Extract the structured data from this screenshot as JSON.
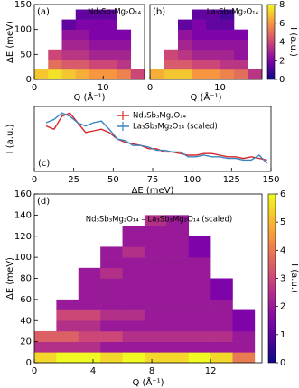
{
  "chart_data": [
    {
      "type": "heatmap",
      "panel_label": "(a)",
      "title": "Nd₃Sb₃Mg₂O₁₄",
      "xlabel": "Q (Å⁻¹)",
      "ylabel": "ΔE (meV)",
      "xlim": [
        0,
        16
      ],
      "xticks": [
        0,
        10
      ],
      "ylim": [
        0,
        150
      ],
      "yticks": [
        0,
        50,
        100,
        150
      ],
      "zlim": [
        0,
        8
      ],
      "x_edges": [
        0,
        2,
        4,
        6,
        8,
        10,
        12,
        14,
        16
      ],
      "y_edges": [
        0,
        20,
        40,
        60,
        80,
        100,
        120,
        140
      ],
      "z": [
        [
          7,
          7.5,
          7,
          6.5,
          6,
          6,
          5.5,
          4
        ],
        [
          null,
          5,
          4.5,
          4.5,
          4,
          4,
          3.5,
          null
        ],
        [
          null,
          4,
          3.5,
          3.5,
          3,
          3,
          3,
          null
        ],
        [
          null,
          null,
          3,
          3,
          2.5,
          2.5,
          2.5,
          null
        ],
        [
          null,
          null,
          2.5,
          2.5,
          2,
          2,
          2,
          null
        ],
        [
          null,
          null,
          1.5,
          2,
          2,
          2,
          null,
          null
        ],
        [
          null,
          null,
          null,
          1.5,
          1.5,
          1.5,
          null,
          null
        ]
      ]
    },
    {
      "type": "heatmap",
      "panel_label": "(b)",
      "title": "La₃Sb₃Mg₂O₁₄",
      "xlabel": "Q (Å⁻¹)",
      "xlim": [
        0,
        16
      ],
      "xticks": [
        0,
        10
      ],
      "ylim": [
        0,
        150
      ],
      "zlim": [
        0,
        8
      ],
      "zticks": [
        0,
        2,
        4,
        6,
        8
      ],
      "colorbar_label": "I (a.u.)",
      "x_edges": [
        0,
        2,
        4,
        6,
        8,
        10,
        12,
        14,
        16
      ],
      "y_edges": [
        0,
        20,
        40,
        60,
        80,
        100,
        120,
        140
      ],
      "z": [
        [
          6.5,
          7,
          7,
          6,
          6,
          5.5,
          5,
          3.5
        ],
        [
          null,
          4.5,
          4.5,
          4,
          4,
          3.5,
          3.5,
          null
        ],
        [
          null,
          4,
          3.5,
          3,
          3,
          3,
          2.5,
          null
        ],
        [
          null,
          null,
          3,
          2.5,
          2.5,
          2.5,
          2.5,
          null
        ],
        [
          null,
          null,
          2.5,
          2,
          2,
          2,
          2,
          null
        ],
        [
          null,
          null,
          1.5,
          2,
          1.5,
          1.5,
          null,
          null
        ],
        [
          null,
          null,
          null,
          1.5,
          1.5,
          1,
          null,
          null
        ]
      ]
    },
    {
      "type": "line",
      "panel_label": "(c)",
      "xlabel": "ΔE (meV)",
      "ylabel": "I (a.u.)",
      "xlim": [
        0,
        150
      ],
      "xticks": [
        0,
        25,
        50,
        75,
        100,
        125,
        150
      ],
      "ylim": [
        0,
        20
      ],
      "legend_loc": "upper center",
      "x": [
        7.5,
        12.5,
        17.5,
        22.5,
        27.5,
        32.5,
        37.5,
        42.5,
        47.5,
        52.5,
        57.5,
        62.5,
        67.5,
        72.5,
        77.5,
        82.5,
        87.5,
        92.5,
        97.5,
        102.5,
        107.5,
        112.5,
        117.5,
        122.5,
        127.5,
        132.5,
        137.5,
        142.5,
        147.5
      ],
      "series": [
        {
          "name": "Nd₃Sb₃Mg₂O₁₄",
          "color": "#d62728",
          "values": [
            14,
            13,
            17,
            18,
            15,
            12,
            12.5,
            13,
            12,
            10,
            9,
            8.5,
            8,
            7,
            7,
            6,
            6,
            5.5,
            5,
            5,
            5.5,
            5.5,
            5,
            4.5,
            4.5,
            4,
            4.5,
            4,
            3.5
          ]
        },
        {
          "name": "La₃Sb₃Mg₂O₁₄ (scaled)",
          "color": "#3a84c0",
          "values": [
            15,
            16,
            18,
            17,
            15,
            14,
            15,
            15.5,
            13,
            10,
            9.5,
            8,
            8,
            7.5,
            6.5,
            6.5,
            6,
            6,
            4.5,
            4.5,
            5,
            4.5,
            4.5,
            4,
            4,
            3.5,
            3.5,
            5,
            2.5
          ]
        }
      ]
    },
    {
      "type": "heatmap",
      "panel_label": "(d)",
      "title": "Nd₃Sb₃Mg₂O₁₄ – La₃Sb₃Mg₂O₁₄ (scaled)",
      "xlabel": "Q (Å⁻¹)",
      "ylabel": "ΔE (meV)",
      "xlim": [
        0,
        15.5
      ],
      "xticks": [
        0,
        4,
        8,
        12
      ],
      "ylim": [
        0,
        160
      ],
      "yticks": [
        0,
        20,
        40,
        60,
        80,
        100,
        120,
        140,
        160
      ],
      "zlim": [
        0,
        6
      ],
      "zticks": [
        0,
        1,
        2,
        3,
        4,
        5,
        6
      ],
      "colorbar_label": "I (a.u.)",
      "x_edges": [
        0,
        1.5,
        3,
        4.5,
        6,
        7.5,
        9,
        10.5,
        12,
        13.5,
        15
      ],
      "y_edges": [
        0,
        10,
        20,
        30,
        40,
        50,
        60,
        70,
        80,
        90,
        100,
        110,
        120,
        130,
        140
      ],
      "z": [
        [
          5.5,
          6,
          6,
          5.5,
          6,
          5.5,
          5.5,
          6,
          5.5,
          4
        ],
        [
          2.5,
          2.5,
          2.5,
          2,
          2,
          2,
          2,
          2,
          2,
          2
        ],
        [
          3.5,
          3.5,
          3,
          3,
          2.5,
          2.5,
          2.5,
          2.5,
          2.5,
          2
        ],
        [
          null,
          2.5,
          2.5,
          2,
          2,
          2,
          2,
          2,
          2,
          1.5
        ],
        [
          null,
          3,
          3,
          2.5,
          2.5,
          2,
          2,
          2,
          2,
          1.5
        ],
        [
          null,
          2,
          2,
          2,
          2,
          2,
          2,
          2,
          2,
          null
        ],
        [
          null,
          null,
          2,
          2,
          2,
          2,
          2,
          2,
          1.5,
          null
        ],
        [
          null,
          null,
          2,
          2,
          2,
          2,
          2,
          2,
          1.5,
          null
        ],
        [
          null,
          null,
          2,
          2.5,
          2,
          2,
          2,
          2,
          null,
          null
        ],
        [
          null,
          null,
          null,
          2,
          2,
          2,
          2,
          2,
          null,
          null
        ],
        [
          null,
          null,
          null,
          2,
          2.5,
          2,
          2,
          1.5,
          null,
          null
        ],
        [
          null,
          null,
          null,
          null,
          2,
          2,
          2,
          1.5,
          null,
          null
        ],
        [
          null,
          null,
          null,
          null,
          2,
          2,
          2,
          null,
          null,
          null
        ],
        [
          null,
          null,
          null,
          null,
          null,
          2.5,
          2,
          null,
          null,
          null
        ]
      ]
    }
  ]
}
